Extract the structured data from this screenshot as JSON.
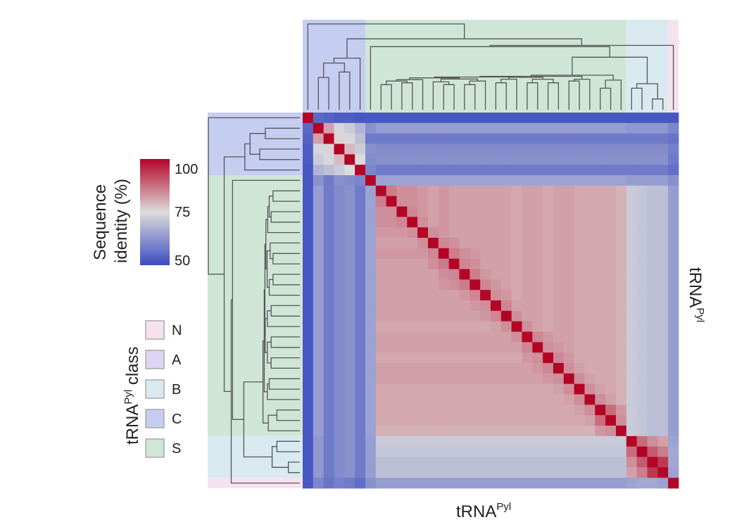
{
  "chart_data": {
    "type": "heatmap",
    "title": "",
    "xlabel": {
      "main": "tRNA",
      "sup": "Pyl"
    },
    "ylabel": {
      "main": "tRNA",
      "sup": "Pyl"
    },
    "colorbar": {
      "title_line1": "Sequence",
      "title_line2": "identity (%)",
      "ticks": [
        "100",
        "75",
        "50"
      ],
      "range": [
        50,
        100
      ],
      "colors": [
        "#3b4cc0",
        "#dddcdc",
        "#b40426"
      ]
    },
    "legend": {
      "title": {
        "main": "tRNA",
        "sup": "Pyl",
        "rest": " class"
      },
      "items": [
        {
          "label": "N",
          "color": "#f6e2ee"
        },
        {
          "label": "A",
          "color": "#dcd6f2"
        },
        {
          "label": "B",
          "color": "#d8e9f0"
        },
        {
          "label": "C",
          "color": "#c5cdf1"
        },
        {
          "label": "S",
          "color": "#cfe6d7"
        }
      ]
    },
    "n_sequences": 36,
    "class_order": [
      "C",
      "C",
      "C",
      "C",
      "C",
      "C",
      "S",
      "S",
      "S",
      "S",
      "S",
      "S",
      "S",
      "S",
      "S",
      "S",
      "S",
      "S",
      "S",
      "S",
      "S",
      "S",
      "S",
      "S",
      "S",
      "S",
      "S",
      "S",
      "S",
      "S",
      "S",
      "B",
      "B",
      "B",
      "B",
      "N"
    ],
    "values_note": "Pairwise identities approximated from colours; diagonal = 100. Rows/cols follow class_order.",
    "matrix": [
      [
        100,
        55,
        54,
        53,
        53,
        52,
        52,
        52,
        52,
        52,
        52,
        52,
        52,
        52,
        52,
        52,
        52,
        52,
        52,
        52,
        52,
        52,
        52,
        52,
        52,
        52,
        52,
        52,
        52,
        52,
        52,
        52,
        52,
        52,
        52,
        52
      ],
      [
        55,
        100,
        82,
        74,
        72,
        68,
        62,
        64,
        64,
        64,
        64,
        64,
        64,
        64,
        64,
        64,
        64,
        64,
        64,
        64,
        64,
        64,
        64,
        64,
        64,
        64,
        64,
        64,
        64,
        64,
        64,
        63,
        63,
        63,
        63,
        60
      ],
      [
        54,
        82,
        100,
        76,
        74,
        70,
        58,
        58,
        58,
        58,
        58,
        58,
        58,
        58,
        58,
        58,
        58,
        58,
        58,
        58,
        58,
        58,
        58,
        58,
        58,
        58,
        58,
        58,
        58,
        58,
        58,
        58,
        58,
        58,
        58,
        57
      ],
      [
        53,
        74,
        76,
        100,
        79,
        72,
        62,
        61,
        61,
        61,
        61,
        61,
        61,
        61,
        61,
        61,
        61,
        61,
        61,
        61,
        61,
        61,
        61,
        61,
        61,
        61,
        61,
        61,
        61,
        61,
        61,
        61,
        61,
        61,
        61,
        59
      ],
      [
        53,
        72,
        74,
        79,
        100,
        75,
        61,
        62,
        62,
        62,
        62,
        62,
        62,
        62,
        62,
        62,
        62,
        62,
        62,
        62,
        62,
        62,
        62,
        62,
        62,
        62,
        62,
        62,
        62,
        62,
        62,
        62,
        62,
        62,
        62,
        58
      ],
      [
        52,
        68,
        70,
        72,
        75,
        100,
        60,
        58,
        58,
        58,
        58,
        58,
        58,
        58,
        58,
        58,
        58,
        58,
        58,
        58,
        58,
        58,
        58,
        58,
        58,
        58,
        58,
        58,
        58,
        58,
        58,
        58,
        58,
        58,
        58,
        56
      ],
      [
        52,
        62,
        58,
        62,
        61,
        60,
        100,
        65,
        65,
        65,
        65,
        65,
        65,
        65,
        65,
        65,
        65,
        65,
        65,
        65,
        65,
        65,
        65,
        65,
        65,
        65,
        65,
        65,
        65,
        65,
        65,
        64,
        64,
        64,
        64,
        62
      ],
      [
        52,
        64,
        58,
        61,
        62,
        58,
        65,
        100,
        86,
        84,
        84,
        83,
        82,
        83,
        82,
        82,
        82,
        82,
        82,
        82,
        81,
        82,
        82,
        81,
        82,
        82,
        81,
        81,
        81,
        81,
        80,
        72,
        71,
        70,
        70,
        64
      ],
      [
        52,
        64,
        58,
        61,
        62,
        58,
        65,
        86,
        100,
        84,
        84,
        83,
        82,
        83,
        82,
        82,
        82,
        82,
        82,
        82,
        81,
        82,
        82,
        81,
        82,
        82,
        81,
        81,
        81,
        81,
        80,
        72,
        71,
        70,
        70,
        64
      ],
      [
        52,
        64,
        58,
        61,
        62,
        58,
        65,
        84,
        84,
        100,
        85,
        83,
        82,
        83,
        82,
        82,
        82,
        82,
        82,
        82,
        81,
        82,
        82,
        81,
        82,
        82,
        81,
        81,
        81,
        81,
        80,
        72,
        71,
        70,
        70,
        64
      ],
      [
        52,
        64,
        58,
        61,
        62,
        58,
        65,
        84,
        84,
        85,
        100,
        84,
        82,
        83,
        82,
        82,
        82,
        82,
        82,
        82,
        81,
        82,
        82,
        81,
        82,
        82,
        81,
        81,
        81,
        81,
        80,
        72,
        71,
        70,
        70,
        64
      ],
      [
        52,
        64,
        58,
        61,
        62,
        58,
        65,
        83,
        83,
        83,
        84,
        100,
        84,
        83,
        82,
        82,
        82,
        82,
        82,
        82,
        81,
        82,
        82,
        81,
        82,
        82,
        81,
        81,
        81,
        81,
        80,
        72,
        71,
        70,
        70,
        64
      ],
      [
        52,
        64,
        58,
        61,
        62,
        58,
        65,
        82,
        82,
        82,
        82,
        84,
        100,
        85,
        84,
        82,
        82,
        82,
        82,
        82,
        81,
        82,
        82,
        81,
        82,
        82,
        81,
        81,
        81,
        81,
        80,
        72,
        71,
        70,
        70,
        64
      ],
      [
        52,
        64,
        58,
        61,
        62,
        58,
        65,
        83,
        83,
        83,
        83,
        83,
        85,
        100,
        86,
        84,
        83,
        82,
        82,
        82,
        81,
        82,
        82,
        81,
        82,
        82,
        81,
        81,
        81,
        81,
        80,
        72,
        71,
        70,
        70,
        64
      ],
      [
        52,
        64,
        58,
        61,
        62,
        58,
        65,
        82,
        82,
        82,
        82,
        82,
        84,
        86,
        100,
        85,
        84,
        82,
        82,
        82,
        81,
        82,
        82,
        81,
        82,
        82,
        81,
        81,
        81,
        81,
        80,
        72,
        71,
        70,
        70,
        64
      ],
      [
        52,
        64,
        58,
        61,
        62,
        58,
        65,
        82,
        82,
        82,
        82,
        82,
        82,
        84,
        85,
        100,
        86,
        83,
        82,
        82,
        81,
        82,
        82,
        81,
        82,
        82,
        81,
        81,
        81,
        81,
        80,
        72,
        71,
        70,
        70,
        64
      ],
      [
        52,
        64,
        58,
        61,
        62,
        58,
        65,
        82,
        82,
        82,
        82,
        82,
        82,
        83,
        84,
        86,
        100,
        85,
        83,
        82,
        81,
        82,
        82,
        81,
        82,
        82,
        81,
        81,
        81,
        81,
        80,
        72,
        71,
        70,
        70,
        64
      ],
      [
        52,
        64,
        58,
        61,
        62,
        58,
        65,
        82,
        82,
        82,
        82,
        82,
        82,
        82,
        82,
        83,
        85,
        100,
        84,
        83,
        81,
        82,
        82,
        81,
        82,
        82,
        81,
        81,
        81,
        81,
        80,
        72,
        71,
        70,
        70,
        64
      ],
      [
        52,
        64,
        58,
        61,
        62,
        58,
        65,
        82,
        82,
        82,
        82,
        82,
        82,
        82,
        82,
        82,
        83,
        84,
        100,
        85,
        82,
        82,
        82,
        81,
        82,
        82,
        81,
        81,
        81,
        81,
        80,
        72,
        71,
        70,
        70,
        64
      ],
      [
        52,
        64,
        58,
        61,
        62,
        58,
        65,
        82,
        82,
        82,
        82,
        82,
        82,
        82,
        82,
        82,
        82,
        83,
        85,
        100,
        84,
        82,
        82,
        81,
        82,
        82,
        81,
        81,
        81,
        81,
        80,
        72,
        71,
        70,
        70,
        64
      ],
      [
        52,
        64,
        58,
        61,
        62,
        58,
        65,
        81,
        81,
        81,
        81,
        81,
        81,
        81,
        81,
        81,
        81,
        81,
        82,
        84,
        100,
        84,
        82,
        81,
        82,
        82,
        81,
        81,
        81,
        81,
        80,
        72,
        71,
        70,
        70,
        64
      ],
      [
        52,
        64,
        58,
        61,
        62,
        58,
        65,
        82,
        82,
        82,
        82,
        82,
        82,
        82,
        82,
        82,
        82,
        82,
        82,
        82,
        84,
        100,
        85,
        83,
        82,
        82,
        81,
        81,
        81,
        81,
        80,
        72,
        71,
        70,
        70,
        64
      ],
      [
        52,
        64,
        58,
        61,
        62,
        58,
        65,
        82,
        82,
        82,
        82,
        82,
        82,
        82,
        82,
        82,
        82,
        82,
        82,
        82,
        82,
        85,
        100,
        84,
        83,
        82,
        81,
        81,
        81,
        81,
        80,
        72,
        71,
        70,
        70,
        64
      ],
      [
        52,
        64,
        58,
        61,
        62,
        58,
        65,
        81,
        81,
        81,
        81,
        81,
        81,
        81,
        81,
        81,
        81,
        81,
        81,
        81,
        81,
        83,
        84,
        100,
        85,
        83,
        81,
        81,
        81,
        81,
        80,
        72,
        71,
        70,
        70,
        64
      ],
      [
        52,
        64,
        58,
        61,
        62,
        58,
        65,
        82,
        82,
        82,
        82,
        82,
        82,
        82,
        82,
        82,
        82,
        82,
        82,
        82,
        82,
        82,
        83,
        85,
        100,
        84,
        82,
        81,
        81,
        81,
        80,
        72,
        71,
        70,
        70,
        64
      ],
      [
        52,
        64,
        58,
        61,
        62,
        58,
        65,
        82,
        82,
        82,
        82,
        82,
        82,
        82,
        82,
        82,
        82,
        82,
        82,
        82,
        82,
        82,
        82,
        83,
        84,
        100,
        84,
        82,
        81,
        81,
        80,
        72,
        71,
        70,
        70,
        64
      ],
      [
        52,
        64,
        58,
        61,
        62,
        58,
        65,
        81,
        81,
        81,
        81,
        81,
        81,
        81,
        81,
        81,
        81,
        81,
        81,
        81,
        81,
        81,
        81,
        81,
        82,
        84,
        100,
        84,
        82,
        81,
        80,
        72,
        71,
        70,
        70,
        64
      ],
      [
        52,
        64,
        58,
        61,
        62,
        58,
        65,
        81,
        81,
        81,
        81,
        81,
        81,
        81,
        81,
        81,
        81,
        81,
        81,
        81,
        81,
        81,
        81,
        81,
        81,
        82,
        84,
        100,
        84,
        82,
        80,
        72,
        71,
        70,
        70,
        64
      ],
      [
        52,
        64,
        58,
        61,
        62,
        58,
        65,
        81,
        81,
        81,
        81,
        81,
        81,
        81,
        81,
        81,
        81,
        81,
        81,
        81,
        81,
        81,
        81,
        81,
        81,
        81,
        82,
        84,
        100,
        88,
        83,
        72,
        71,
        70,
        70,
        64
      ],
      [
        52,
        64,
        58,
        61,
        62,
        58,
        65,
        81,
        81,
        81,
        81,
        81,
        81,
        81,
        81,
        81,
        81,
        81,
        81,
        81,
        81,
        81,
        81,
        81,
        81,
        81,
        81,
        82,
        88,
        100,
        84,
        72,
        71,
        70,
        70,
        64
      ],
      [
        52,
        64,
        58,
        61,
        62,
        58,
        65,
        80,
        80,
        80,
        80,
        80,
        80,
        80,
        80,
        80,
        80,
        80,
        80,
        80,
        80,
        80,
        80,
        80,
        80,
        80,
        80,
        80,
        83,
        84,
        100,
        72,
        71,
        70,
        70,
        64
      ],
      [
        52,
        63,
        58,
        61,
        62,
        58,
        64,
        72,
        72,
        72,
        72,
        72,
        72,
        72,
        72,
        72,
        72,
        72,
        72,
        72,
        72,
        72,
        72,
        72,
        72,
        72,
        72,
        72,
        72,
        72,
        72,
        100,
        88,
        84,
        82,
        65
      ],
      [
        52,
        63,
        58,
        61,
        62,
        58,
        64,
        71,
        71,
        71,
        71,
        71,
        71,
        71,
        71,
        71,
        71,
        71,
        71,
        71,
        71,
        71,
        71,
        71,
        71,
        71,
        71,
        71,
        71,
        71,
        71,
        88,
        100,
        90,
        86,
        66
      ],
      [
        52,
        63,
        58,
        61,
        62,
        58,
        64,
        70,
        70,
        70,
        70,
        70,
        70,
        70,
        70,
        70,
        70,
        70,
        70,
        70,
        70,
        70,
        70,
        70,
        70,
        70,
        70,
        70,
        70,
        70,
        70,
        84,
        90,
        100,
        94,
        66
      ],
      [
        52,
        63,
        58,
        61,
        62,
        58,
        64,
        70,
        70,
        70,
        70,
        70,
        70,
        70,
        70,
        70,
        70,
        70,
        70,
        70,
        70,
        70,
        70,
        70,
        70,
        70,
        70,
        70,
        70,
        70,
        70,
        82,
        86,
        94,
        100,
        65
      ],
      [
        52,
        60,
        57,
        59,
        58,
        56,
        62,
        64,
        64,
        64,
        64,
        64,
        64,
        64,
        64,
        64,
        64,
        64,
        64,
        64,
        64,
        64,
        64,
        64,
        64,
        64,
        64,
        64,
        64,
        64,
        64,
        65,
        66,
        66,
        65,
        100
      ]
    ],
    "grid": false,
    "legend_placement": "left"
  }
}
